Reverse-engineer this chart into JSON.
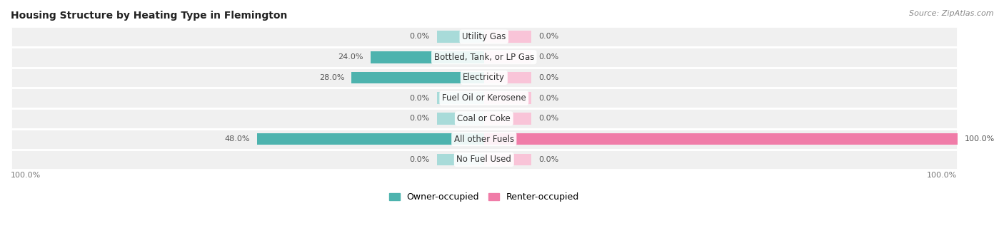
{
  "title": "Housing Structure by Heating Type in Flemington",
  "source": "Source: ZipAtlas.com",
  "categories": [
    "Utility Gas",
    "Bottled, Tank, or LP Gas",
    "Electricity",
    "Fuel Oil or Kerosene",
    "Coal or Coke",
    "All other Fuels",
    "No Fuel Used"
  ],
  "owner_values": [
    0.0,
    24.0,
    28.0,
    0.0,
    0.0,
    48.0,
    0.0
  ],
  "renter_values": [
    0.0,
    0.0,
    0.0,
    0.0,
    0.0,
    100.0,
    0.0
  ],
  "owner_color": "#4db3ae",
  "renter_color": "#f07ca8",
  "owner_light_color": "#a8dbd9",
  "renter_light_color": "#f9c4d8",
  "bg_row_color": "#f0f0f0",
  "max_value": 100.0,
  "stub_size": 10.0,
  "title_fontsize": 10,
  "source_fontsize": 8,
  "category_fontsize": 8.5,
  "value_fontsize": 8.0,
  "legend_fontsize": 9,
  "axis_tick_label": "100.0%"
}
